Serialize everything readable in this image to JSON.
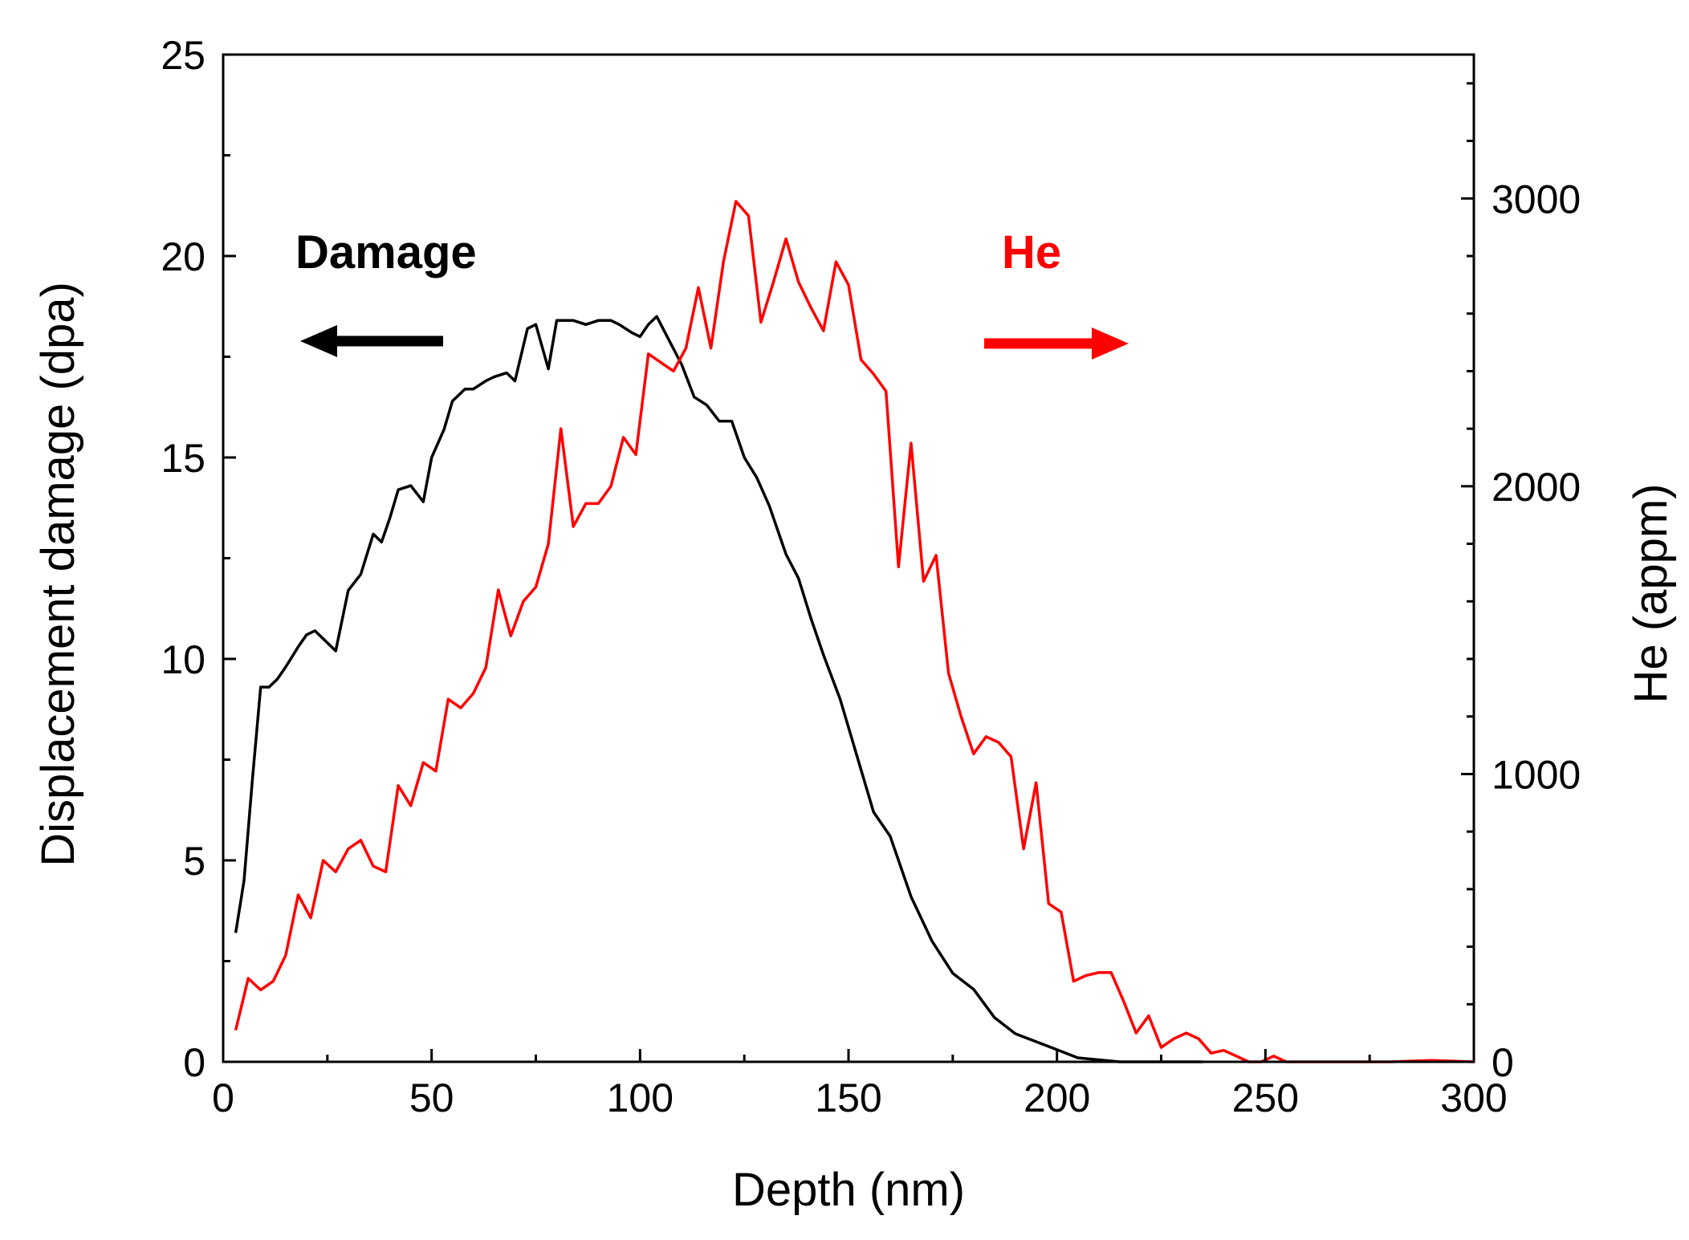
{
  "chart_data": {
    "type": "line",
    "title": "",
    "xlabel": "Depth (nm)",
    "ylabel_left": "Displacement damage (dpa)",
    "ylabel_right": "He (appm)",
    "xlim": [
      0,
      300
    ],
    "ylim_left": [
      0,
      25
    ],
    "ylim_right": [
      0,
      3500
    ],
    "x_ticks": [
      0,
      50,
      100,
      150,
      200,
      250,
      300
    ],
    "y_left_ticks": [
      0,
      5,
      10,
      15,
      20,
      25
    ],
    "y_right_ticks": [
      0,
      1000,
      2000,
      3000
    ],
    "grid": false,
    "annotations": {
      "damage_label": "Damage",
      "he_label": "He"
    },
    "colors": {
      "damage": "#000000",
      "he": "#ff0000",
      "axes": "#000000"
    },
    "series": [
      {
        "name": "Damage",
        "axis": "left",
        "color": "#000000",
        "x": [
          3,
          5,
          7,
          9,
          11,
          13,
          15,
          18,
          20,
          22,
          24,
          27,
          30,
          33,
          36,
          38,
          40,
          42,
          45,
          48,
          50,
          53,
          55,
          58,
          60,
          63,
          65,
          68,
          70,
          73,
          75,
          78,
          80,
          82,
          84,
          87,
          90,
          93,
          95,
          98,
          100,
          102,
          104,
          107,
          110,
          113,
          116,
          119,
          122,
          125,
          128,
          131,
          135,
          138,
          141,
          144,
          148,
          152,
          156,
          160,
          165,
          170,
          175,
          180,
          185,
          190,
          195,
          200,
          205,
          210,
          215,
          220,
          225,
          230,
          235
        ],
        "values": [
          3.2,
          4.5,
          7.0,
          9.3,
          9.3,
          9.5,
          9.8,
          10.3,
          10.6,
          10.7,
          10.5,
          10.2,
          11.7,
          12.1,
          13.1,
          12.9,
          13.5,
          14.2,
          14.3,
          13.9,
          15.0,
          15.7,
          16.4,
          16.7,
          16.7,
          16.9,
          17.0,
          17.1,
          16.9,
          18.2,
          18.3,
          17.2,
          18.4,
          18.4,
          18.4,
          18.3,
          18.4,
          18.4,
          18.3,
          18.1,
          18.0,
          18.3,
          18.5,
          17.9,
          17.3,
          16.5,
          16.3,
          15.9,
          15.9,
          15.0,
          14.5,
          13.8,
          12.6,
          12.0,
          11.0,
          10.1,
          9.0,
          7.6,
          6.2,
          5.6,
          4.1,
          3.0,
          2.2,
          1.8,
          1.1,
          0.7,
          0.5,
          0.3,
          0.1,
          0.05,
          0.0,
          0.0,
          0.0,
          0.0,
          0.0
        ]
      },
      {
        "name": "He",
        "axis": "right",
        "color": "#ff0000",
        "x": [
          3,
          6,
          9,
          12,
          15,
          18,
          21,
          24,
          27,
          30,
          33,
          36,
          39,
          42,
          45,
          48,
          51,
          54,
          57,
          60,
          63,
          66,
          69,
          72,
          75,
          78,
          81,
          84,
          87,
          90,
          93,
          96,
          99,
          102,
          105,
          108,
          111,
          114,
          117,
          120,
          123,
          126,
          129,
          132,
          135,
          138,
          141,
          144,
          147,
          150,
          153,
          156,
          159,
          162,
          165,
          168,
          171,
          174,
          177,
          180,
          183,
          186,
          189,
          192,
          195,
          198,
          201,
          204,
          207,
          210,
          213,
          216,
          219,
          222,
          225,
          228,
          231,
          234,
          237,
          240,
          243,
          246,
          249,
          252,
          255,
          260,
          270,
          280,
          290,
          300
        ],
        "values": [
          110,
          290,
          250,
          280,
          370,
          580,
          500,
          700,
          660,
          740,
          770,
          680,
          660,
          960,
          890,
          1040,
          1010,
          1260,
          1230,
          1280,
          1370,
          1640,
          1480,
          1600,
          1650,
          1800,
          2200,
          1860,
          1940,
          1940,
          2000,
          2170,
          2110,
          2460,
          2430,
          2400,
          2480,
          2690,
          2480,
          2780,
          2990,
          2940,
          2570,
          2710,
          2860,
          2710,
          2620,
          2540,
          2780,
          2700,
          2440,
          2390,
          2330,
          1720,
          2150,
          1670,
          1760,
          1350,
          1200,
          1070,
          1130,
          1110,
          1060,
          740,
          970,
          550,
          520,
          280,
          300,
          310,
          310,
          210,
          100,
          160,
          50,
          80,
          100,
          80,
          30,
          40,
          20,
          0,
          0,
          20,
          0,
          0,
          0,
          0,
          5,
          0
        ]
      }
    ]
  }
}
